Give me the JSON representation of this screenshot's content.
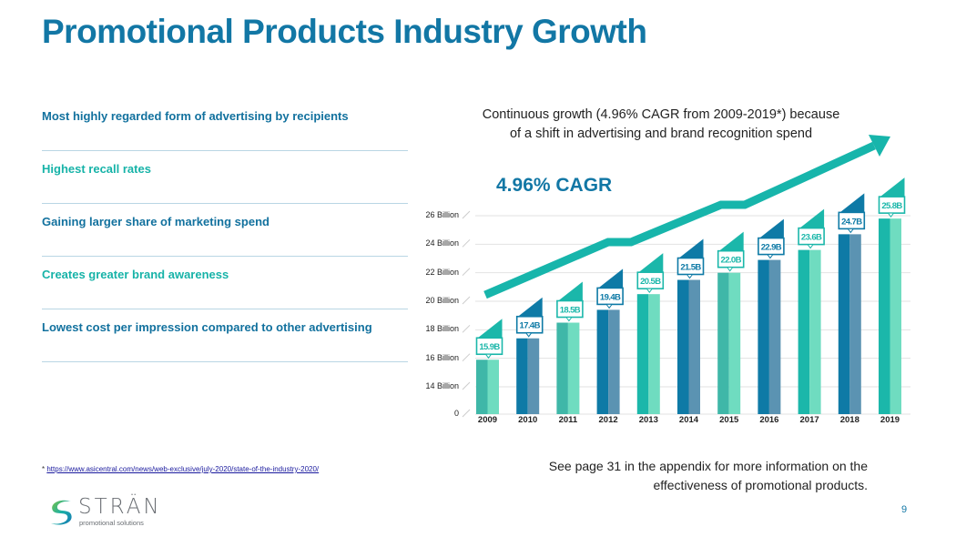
{
  "page": {
    "title": "Promotional Products Industry Growth",
    "page_number": "9"
  },
  "bullets": [
    {
      "text": "Most highly regarded form of advertising by recipients",
      "color": "#12719e"
    },
    {
      "text": "Highest recall rates",
      "color": "#17b3a8"
    },
    {
      "text": "Gaining larger share of marketing spend",
      "color": "#12719e"
    },
    {
      "text": "Creates greater brand awareness",
      "color": "#17b3a8"
    },
    {
      "text": "Lowest cost per impression compared to other advertising",
      "color": "#12719e"
    }
  ],
  "subtitle_line1": "Continuous growth (4.96% CAGR from 2009-2019*) because",
  "subtitle_line2": "of a shift in advertising and brand recognition spend",
  "cagr_label": "4.96% CAGR",
  "footnote": {
    "prefix": "* ",
    "link_text": "https://www.asicentral.com/news/web-exclusive/july-2020/state-of-the-industry-2020/"
  },
  "appendix_line1": "See page 31 in the appendix for more information on the",
  "appendix_line2": "effectiveness of promotional products.",
  "logo": {
    "name": "STRÄN",
    "tagline": "promotional solutions"
  },
  "colors": {
    "dark_blue": "#0e7aa6",
    "dark_blue_light": "#5b93b2",
    "teal": "#1bb7aa",
    "teal_light": "#6fdcc0",
    "mid_teal": "#3fb7a8",
    "arrow": "#17b5ab"
  },
  "chart_data": {
    "type": "bar",
    "title": "",
    "xlabel": "",
    "ylabel": "",
    "categories": [
      "2009",
      "2010",
      "2011",
      "2012",
      "2013",
      "2014",
      "2015",
      "2016",
      "2017",
      "2018",
      "2019"
    ],
    "values": [
      15.9,
      17.4,
      18.5,
      19.4,
      20.5,
      21.5,
      22.0,
      22.9,
      23.6,
      24.7,
      25.8
    ],
    "value_labels": [
      "15.9B",
      "17.4B",
      "18.5B",
      "19.4B",
      "20.5B",
      "21.5B",
      "22.0B",
      "22.9B",
      "23.6B",
      "24.7B",
      "25.8B"
    ],
    "bar_styles": [
      "teal",
      "blue",
      "teal",
      "blue",
      "teal",
      "blue",
      "teal",
      "blue",
      "teal",
      "blue",
      "teal"
    ],
    "y_ticks": [
      {
        "value": 0,
        "label": "0"
      },
      {
        "value": 14,
        "label": "14 Billion"
      },
      {
        "value": 16,
        "label": "16 Billion"
      },
      {
        "value": 18,
        "label": "18 Billion"
      },
      {
        "value": 20,
        "label": "20 Billion"
      },
      {
        "value": 22,
        "label": "22 Billion"
      },
      {
        "value": 24,
        "label": "24 Billion"
      },
      {
        "value": 26,
        "label": "26 Billion"
      }
    ],
    "units": "Billion USD",
    "grid": true,
    "annotation": "4.96% CAGR",
    "trend_arrow": true
  }
}
